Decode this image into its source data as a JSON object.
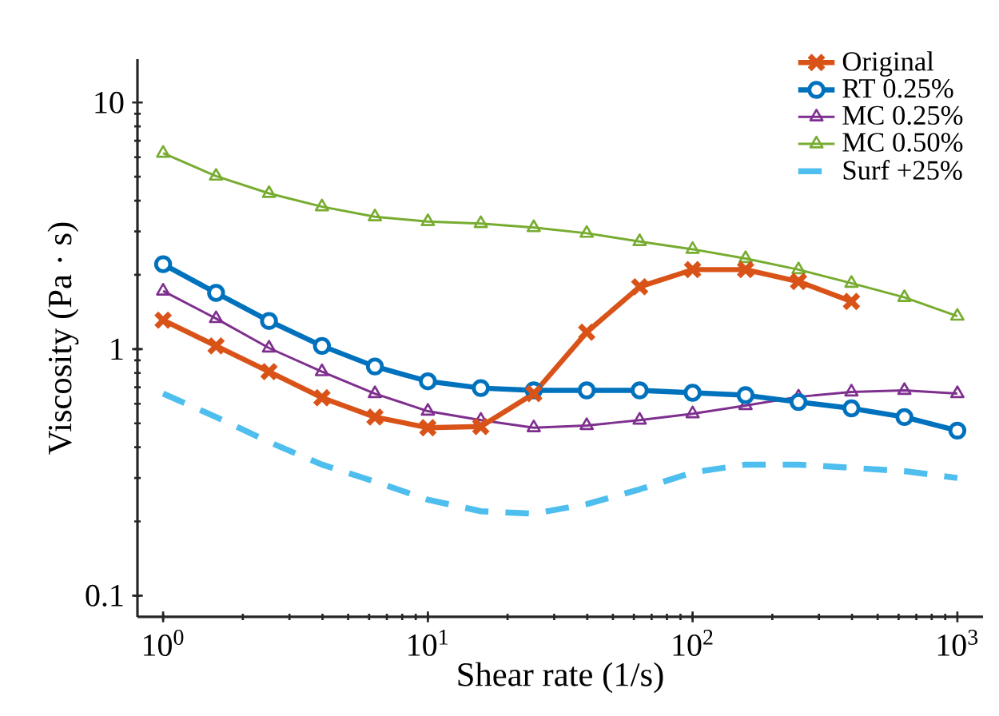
{
  "chart_data": {
    "type": "line",
    "xlabel": "Shear rate (1/s)",
    "ylabel": "Viscosity (Pa · s)",
    "log": "xy",
    "x": [
      1,
      1.585,
      2.512,
      3.981,
      6.31,
      10,
      15.85,
      25.12,
      39.81,
      63.1,
      100,
      158.5,
      251.2,
      398.1,
      631,
      1000
    ],
    "xlim": [
      0.8,
      1250
    ],
    "ylim": [
      0.082,
      15
    ],
    "xticks": [
      {
        "value": 1,
        "label": "10$^{0}$"
      },
      {
        "value": 10,
        "label": "10$^{1}$"
      },
      {
        "value": 100,
        "label": "10$^{2}$"
      },
      {
        "value": 1000,
        "label": "10$^{3}$"
      }
    ],
    "yticks": [
      0.1,
      1,
      10
    ],
    "grid": false,
    "legend": "top right",
    "series": [
      {
        "name": "Original",
        "color": "#d95319",
        "marker": "cross",
        "line_style": "solid",
        "x": [
          1,
          1.585,
          2.512,
          3.981,
          6.31,
          10,
          15.85,
          25.12,
          39.81,
          63.1,
          100,
          158.5,
          251.2,
          398.1
        ],
        "values": [
          1.31,
          1.03,
          0.81,
          0.635,
          0.53,
          0.48,
          0.485,
          0.66,
          1.17,
          1.79,
          2.1,
          2.1,
          1.88,
          1.56
        ]
      },
      {
        "name": "RT 0.25%",
        "color": "#0072bd",
        "marker": "circle",
        "line_style": "solid",
        "values": [
          2.21,
          1.69,
          1.3,
          1.03,
          0.85,
          0.74,
          0.695,
          0.68,
          0.68,
          0.68,
          0.665,
          0.65,
          0.61,
          0.575,
          0.53,
          0.467
        ]
      },
      {
        "name": "MC 0.25%",
        "color": "#7e2f8e",
        "marker": "triangle",
        "line_style": "solid",
        "values": [
          1.72,
          1.33,
          1.01,
          0.81,
          0.66,
          0.56,
          0.515,
          0.48,
          0.49,
          0.515,
          0.547,
          0.59,
          0.64,
          0.67,
          0.68,
          0.66
        ]
      },
      {
        "name": "MC 0.50%",
        "color": "#77ac30",
        "marker": "triangle",
        "line_style": "solid",
        "values": [
          6.23,
          5.03,
          4.28,
          3.78,
          3.44,
          3.29,
          3.23,
          3.11,
          2.95,
          2.73,
          2.54,
          2.33,
          2.1,
          1.85,
          1.62,
          1.36
        ]
      },
      {
        "name": "Surf +25%",
        "color": "#4dbeee",
        "marker": "none",
        "line_style": "dashed",
        "values": [
          0.66,
          0.53,
          0.42,
          0.34,
          0.29,
          0.245,
          0.22,
          0.215,
          0.235,
          0.27,
          0.316,
          0.34,
          0.34,
          0.33,
          0.32,
          0.3
        ]
      }
    ]
  }
}
